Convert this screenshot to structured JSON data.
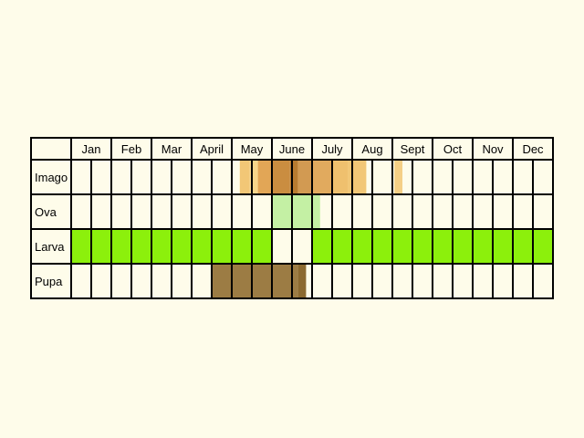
{
  "chart_data": {
    "type": "table",
    "title": "",
    "months": [
      "Jan",
      "Feb",
      "Mar",
      "Apr",
      "May",
      "June",
      "July",
      "Aug",
      "Sept",
      "Oct",
      "Nov",
      "Dec"
    ],
    "month_labels": [
      "Jan",
      "Feb",
      "Mar",
      "April",
      "May",
      "June",
      "July",
      "Aug",
      "Sept",
      "Oct",
      "Nov",
      "Dec"
    ],
    "rows": [
      {
        "name": "Imago",
        "activity_periods": [
          {
            "start_month": 5.2,
            "end_month": 5.45,
            "color": "#f2c776"
          },
          {
            "start_month": 5.45,
            "end_month": 5.65,
            "color": "#f8d58a"
          },
          {
            "start_month": 5.65,
            "end_month": 6.0,
            "color": "#e2a656"
          },
          {
            "start_month": 6.0,
            "end_month": 6.45,
            "color": "#ca8d40"
          },
          {
            "start_month": 6.45,
            "end_month": 6.65,
            "color": "#b87b30"
          },
          {
            "start_month": 6.65,
            "end_month": 7.0,
            "color": "#d29a52"
          },
          {
            "start_month": 7.0,
            "end_month": 7.5,
            "color": "#e1aa5e"
          },
          {
            "start_month": 7.5,
            "end_month": 7.9,
            "color": "#efc06e"
          },
          {
            "start_month": 7.9,
            "end_month": 8.35,
            "color": "#f2c776"
          },
          {
            "start_month": 9.05,
            "end_month": 9.25,
            "color": "#f5cf86"
          }
        ]
      },
      {
        "name": "Ova",
        "activity_periods": [
          {
            "start_month": 6.0,
            "end_month": 7.2,
            "color": "#c4f0a4"
          }
        ]
      },
      {
        "name": "Larva",
        "activity_periods": [
          {
            "start_month": 1.0,
            "end_month": 6.0,
            "color": "#8cf00c"
          },
          {
            "start_month": 7.0,
            "end_month": 13.0,
            "color": "#8cf00c"
          }
        ]
      },
      {
        "name": "Pupa",
        "activity_periods": [
          {
            "start_month": 4.5,
            "end_month": 6.65,
            "color": "#9c7c44"
          },
          {
            "start_month": 6.65,
            "end_month": 6.85,
            "color": "#8c6a30"
          }
        ]
      }
    ],
    "grid": true,
    "colors": {
      "background": "#fefcea",
      "grid_line": "#000000"
    }
  }
}
